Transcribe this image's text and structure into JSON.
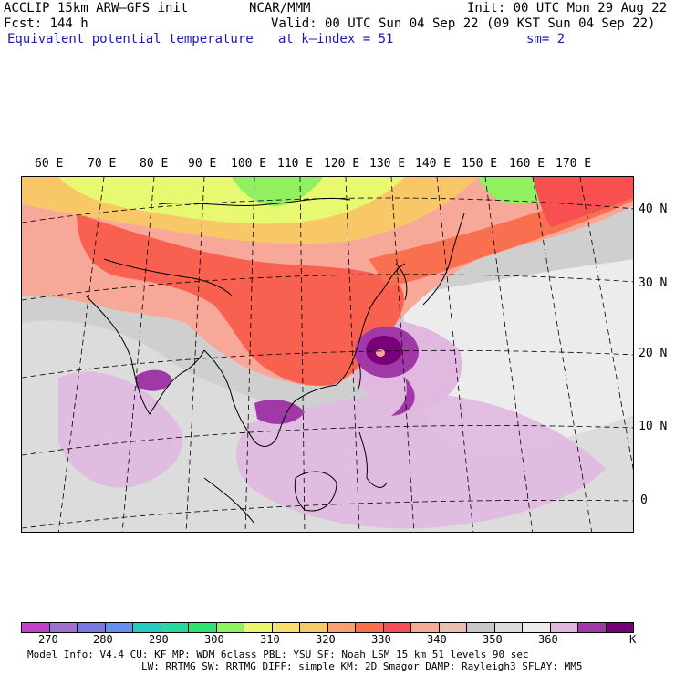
{
  "header": {
    "model": "ACCLIP 15km ARW–GFS init",
    "org": "NCAR/MMM",
    "init": "Init: 00 UTC Mon 29 Aug 22",
    "fcst": "Fcst:  144 h",
    "valid": "Valid: 00 UTC Sun 04 Sep 22 (09 KST Sun 04 Sep 22)",
    "field": "Equivalent potential temperature",
    "level": "at k–index =  51",
    "smooth": "sm= 2"
  },
  "map": {
    "lon_labels": [
      "60 E",
      "70 E",
      "80 E",
      "90 E",
      "100 E",
      "110 E",
      "120 E",
      "130 E",
      "140 E",
      "150 E",
      "160 E",
      "170 E"
    ],
    "lat_labels": [
      "40 N",
      "30 N",
      "20 N",
      "10 N",
      "0"
    ],
    "colors": {
      "land_border": "#000000",
      "grid": "#000000"
    }
  },
  "colorbar": {
    "colors": [
      "#c040c8",
      "#a070d0",
      "#7878e0",
      "#6090f0",
      "#28c8c8",
      "#28d8a0",
      "#30e070",
      "#90f060",
      "#e8f870",
      "#f8e070",
      "#f8c868",
      "#f8a070",
      "#f87050",
      "#f85050",
      "#f8a898",
      "#e8c0b0",
      "#c8c8c8",
      "#dcdcdc",
      "#ececec",
      "#e0b8e0",
      "#a038a8",
      "#780078"
    ],
    "tick_labels": [
      "270",
      "280",
      "290",
      "300",
      "310",
      "320",
      "330",
      "340",
      "350",
      "360",
      "K"
    ]
  },
  "footer": {
    "line1": "Model Info: V4.4     CU: KF       MP: WDM 6class  PBL: YSU     SF: Noah LSM     15 km    51 levels   90 sec",
    "line2": "LW: RRTMG   SW: RRTMG  DIFF: simple KM: 2D Smagor DAMP: Rayleigh3  SFLAY: MM5"
  }
}
